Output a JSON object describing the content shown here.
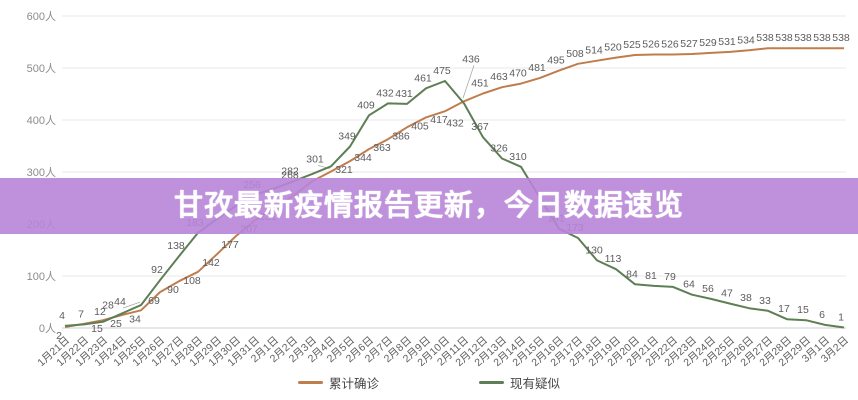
{
  "banner": {
    "title": "甘孜最新疫情报告更新，今日数据速览",
    "bg_color": "#b885d8",
    "bg_opacity": 0.9,
    "text_color": "#ffffff"
  },
  "legend": [
    {
      "label": "累计确诊",
      "color": "#bf7d4e"
    },
    {
      "label": "现有疑似",
      "color": "#5e7e55"
    }
  ],
  "y_axis": {
    "ticks": [
      "0人",
      "100人",
      "200人",
      "300人",
      "400人",
      "500人",
      "600人"
    ],
    "tick_values": [
      0,
      100,
      200,
      300,
      400,
      500,
      600
    ],
    "color": "#8c8c8c"
  },
  "chart_data": {
    "type": "line",
    "title": "",
    "xlabel": "",
    "ylabel": "人",
    "ylim": [
      0,
      600
    ],
    "grid": true,
    "legend_position": "bottom",
    "x": [
      "1月21日",
      "1月22日",
      "1月23日",
      "1月24日",
      "1月25日",
      "1月26日",
      "1月27日",
      "1月28日",
      "1月29日",
      "1月30日",
      "1月31日",
      "2月1日",
      "2月2日",
      "2月3日",
      "2月4日",
      "2月5日",
      "2月6日",
      "2月7日",
      "2月8日",
      "2月9日",
      "2月10日",
      "2月11日",
      "2月12日",
      "2月13日",
      "2月14日",
      "2月15日",
      "2月16日",
      "2月17日",
      "2月18日",
      "2月19日",
      "2月20日",
      "2月21日",
      "2月22日",
      "2月23日",
      "2月24日",
      "2月25日",
      "2月26日",
      "2月27日",
      "2月28日",
      "2月29日",
      "3月1日",
      "3月2日"
    ],
    "series": [
      {
        "name": "累计确诊",
        "color": "#bf7d4e",
        "values": [
          2,
          8,
          15,
          25,
          34,
          69,
          90,
          108,
          142,
          177,
          207,
          231,
          254,
          282,
          301,
          321,
          344,
          363,
          386,
          405,
          417,
          436,
          451,
          463,
          470,
          481,
          495,
          508,
          514,
          520,
          525,
          526,
          526,
          527,
          529,
          531,
          534,
          538,
          538,
          538,
          538,
          538
        ],
        "labels": [
          "2",
          "",
          "15",
          "25",
          "34",
          "69",
          "90",
          "108",
          "142",
          "177",
          "207",
          "231",
          "",
          "",
          "301",
          "321",
          "344",
          "363",
          "386",
          "405",
          "417",
          "436",
          "451",
          "463",
          "470",
          "481",
          "495",
          "508",
          "514",
          "520",
          "525",
          "526",
          "526",
          "527",
          "529",
          "531",
          "534",
          "538",
          "538",
          "538",
          "538",
          "538"
        ],
        "label_side": [
          "b",
          "b",
          "b",
          "b",
          "b",
          "b",
          "b",
          "b",
          "b",
          "b",
          "b",
          "b",
          "b",
          "b",
          "b",
          "b",
          "b",
          "b",
          "b",
          "b",
          "b",
          "a",
          "a",
          "a",
          "a",
          "a",
          "a",
          "a",
          "a",
          "a",
          "a",
          "a",
          "a",
          "a",
          "a",
          "a",
          "a",
          "a",
          "a",
          "a",
          "a",
          "a"
        ],
        "overrides": {
          "14": {
            "dx": -10,
            "dy": -21,
            "callout": true
          },
          "21": {
            "dx": 10,
            "dy": -32,
            "callout": true
          }
        }
      },
      {
        "name": "现有疑似",
        "color": "#5e7e55",
        "values": [
          4,
          7,
          12,
          28,
          44,
          92,
          138,
          183,
          210,
          235,
          256,
          268,
          282,
          296,
          311,
          349,
          409,
          432,
          431,
          461,
          475,
          432,
          367,
          326,
          310,
          250,
          191,
          173,
          130,
          113,
          84,
          81,
          79,
          64,
          56,
          47,
          38,
          33,
          17,
          15,
          6,
          1
        ],
        "labels": [
          "4",
          "7",
          "12",
          "28",
          "44",
          "92",
          "138",
          "183",
          "",
          "",
          "256",
          "268",
          "282",
          "",
          "",
          "349",
          "409",
          "432",
          "431",
          "461",
          "475",
          "432",
          "367",
          "326",
          "310",
          "",
          "191",
          "173",
          "130",
          "113",
          "84",
          "81",
          "79",
          "64",
          "56",
          "47",
          "38",
          "33",
          "17",
          "15",
          "6",
          "1"
        ],
        "label_side": [
          "a",
          "a",
          "a",
          "a",
          "a",
          "a",
          "a",
          "a",
          "a",
          "a",
          "a",
          "a",
          "a",
          "a",
          "a",
          "a",
          "a",
          "a",
          "a",
          "a",
          "a",
          "b",
          "a",
          "a",
          "a",
          "a",
          "a",
          "a",
          "a",
          "a",
          "a",
          "a",
          "a",
          "a",
          "a",
          "a",
          "a",
          "a",
          "a",
          "a",
          "a",
          "a"
        ],
        "overrides": {
          "3": {
            "dx": -11,
            "dy": 2
          },
          "4": {
            "dx": -18,
            "dy": 7,
            "callout": true
          },
          "11": {
            "dx": 19,
            "dy": -3
          },
          "21": {
            "dx": -3,
            "dy": 11
          }
        }
      }
    ]
  },
  "style": {
    "grid_color": "#e9e9e9",
    "zero_line_color": "#cfcfcf",
    "x_label_color": "#5f5f5f",
    "point_label_color": "#5c5c5c",
    "callout_color": "#aaaaaa"
  }
}
